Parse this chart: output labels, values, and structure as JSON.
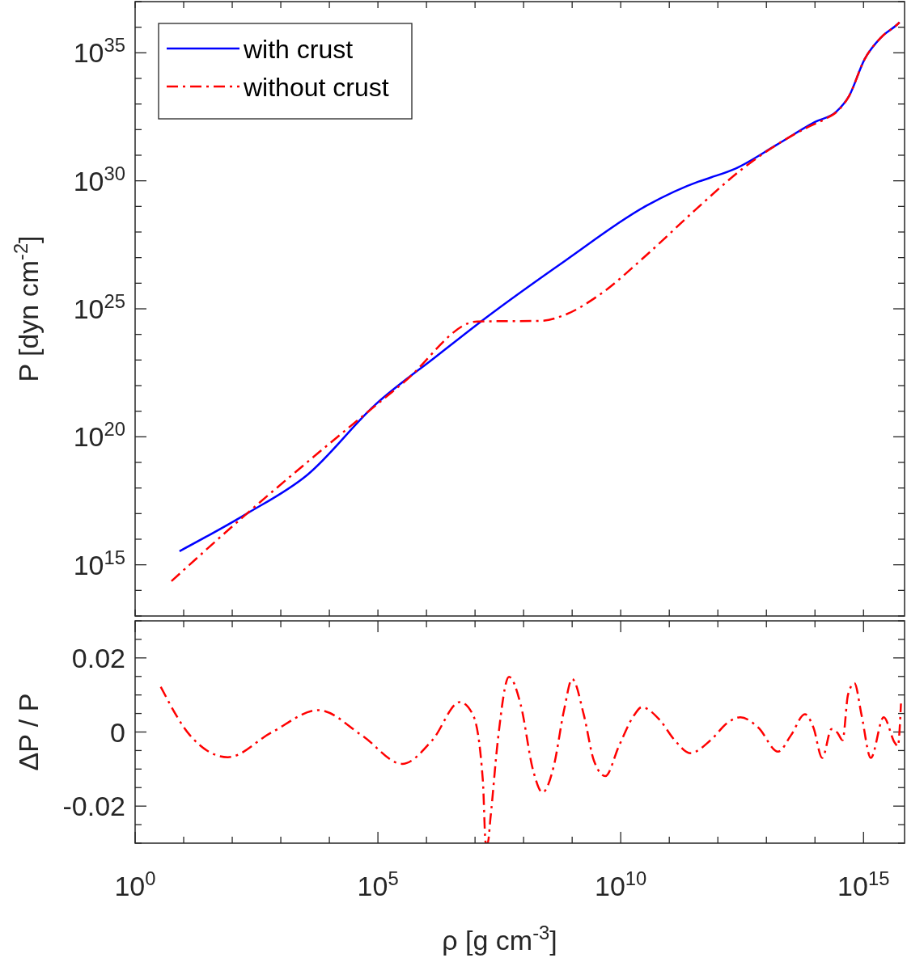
{
  "chart_data": [
    {
      "type": "line",
      "log": "xy",
      "legend": "top left",
      "tick_labels": "y",
      "ylabel": "P [dyn cm$^{-2}$]",
      "xlim": [
        1,
        7000000000000000.0
      ],
      "ylim": [
        10000000000000.0,
        1e+37
      ],
      "xticks": [
        {
          "value": 1,
          "label": null
        },
        {
          "value": 10,
          "label": null
        },
        {
          "value": 100,
          "label": null
        },
        {
          "value": 1000,
          "label": null
        },
        {
          "value": 10000,
          "label": null
        },
        {
          "value": 100000,
          "label": null
        },
        {
          "value": 1000000.0,
          "label": null
        },
        {
          "value": 10000000.0,
          "label": null
        },
        {
          "value": 100000000.0,
          "label": null
        },
        {
          "value": 1000000000.0,
          "label": null
        },
        {
          "value": 10000000000.0,
          "label": null
        },
        {
          "value": 100000000000.0,
          "label": null
        },
        {
          "value": 1000000000000.0,
          "label": null
        },
        {
          "value": 10000000000000.0,
          "label": null
        },
        {
          "value": 100000000000000.0,
          "label": null
        },
        {
          "value": 1000000000000000.0,
          "label": null
        }
      ],
      "yticks": [
        {
          "value": 10000000000000.0,
          "label": null
        },
        {
          "value": 100000000000000.0,
          "label": null
        },
        {
          "value": 1000000000000000.0,
          "label": "10$^{15}$"
        },
        {
          "value": 1e+16,
          "label": null
        },
        {
          "value": 1e+17,
          "label": null
        },
        {
          "value": 1e+18,
          "label": null
        },
        {
          "value": 1e+19,
          "label": null
        },
        {
          "value": 1e+20,
          "label": "10$^{20}$"
        },
        {
          "value": 1e+21,
          "label": null
        },
        {
          "value": 1e+22,
          "label": null
        },
        {
          "value": 1e+23,
          "label": null
        },
        {
          "value": 1e+24,
          "label": null
        },
        {
          "value": 1e+25,
          "label": "10$^{25}$"
        },
        {
          "value": 1e+26,
          "label": null
        },
        {
          "value": 1e+27,
          "label": null
        },
        {
          "value": 1e+28,
          "label": null
        },
        {
          "value": 1e+29,
          "label": null
        },
        {
          "value": 1e+30,
          "label": "10$^{30}$"
        },
        {
          "value": 1e+31,
          "label": null
        },
        {
          "value": 1e+32,
          "label": null
        },
        {
          "value": 1e+33,
          "label": null
        },
        {
          "value": 1e+34,
          "label": null
        },
        {
          "value": 1e+35,
          "label": "10$^{35}$"
        },
        {
          "value": 1e+36,
          "label": null
        },
        {
          "value": 1e+37,
          "label": null
        }
      ],
      "series": [
        {
          "name": "with crust",
          "color": "#0000ff",
          "line_style": "solid",
          "x": [
            8.2,
            200,
            3470,
            91000,
            1600000.0,
            16000000.0,
            740000000.0,
            34000000000.0,
            400000000000.0,
            720000000000.0,
            2300000000000.0,
            16000000000000.0,
            100000000000000.0,
            275000000000000.0,
            500000000000000.0,
            1050000000000000.0,
            2300000000000000.0,
            4900000000000000.0,
            5500000000000000.0
          ],
          "values": [
            3400000000000000.0,
            1e+17,
            3.2e+18,
            1.9e+21,
            1.4e+23,
            4.2e+24,
            7.9e+26,
            1.07e+29,
            9.3e+29,
            1.35e+30,
            3e+30,
            2.5e+31,
            2e+32,
            5e+32,
            2e+33,
            5.6e+34,
            4e+35,
            1.26e+36,
            1.55e+36
          ]
        },
        {
          "name": "without crust",
          "color": "#ff0000",
          "line_style": "dashed",
          "x": [
            5.6,
            200,
            7600,
            350000,
            11000000.0,
            230000000.0,
            740000000.0,
            3400000000.0,
            34000000000.0,
            340000000000.0,
            3400000000000.0,
            16000000000000.0,
            72000000000000.0,
            155000000000000.0,
            275000000000000.0,
            500000000000000.0,
            1050000000000000.0,
            2300000000000000.0,
            4900000000000000.0,
            5500000000000000.0
          ],
          "values": [
            230000000000000.0,
            1e+17,
            3.5e+19,
            1.4e+22,
            3.2e+24,
            3.4e+24,
            6e+24,
            3.2e+25,
            1.26e+27,
            7.2e+28,
            3.2e+30,
            2.5e+31,
            1.26e+32,
            2.5e+32,
            4.8e+32,
            2e+33,
            5.6e+34,
            4e+35,
            1.26e+36,
            1.55e+36
          ]
        }
      ]
    },
    {
      "type": "line",
      "log": "x",
      "ylabel": "ΔP / P",
      "xlabel": "ρ [g cm$^{-3}$]",
      "xlim": [
        1,
        7000000000000000.0
      ],
      "ylim": [
        -0.03,
        0.03
      ],
      "xticks": [
        {
          "value": 1,
          "label": "10$^{0}$"
        },
        {
          "value": 10,
          "label": null
        },
        {
          "value": 100,
          "label": null
        },
        {
          "value": 1000,
          "label": null
        },
        {
          "value": 10000,
          "label": null
        },
        {
          "value": 100000,
          "label": "10$^{5}$"
        },
        {
          "value": 1000000.0,
          "label": null
        },
        {
          "value": 10000000.0,
          "label": null
        },
        {
          "value": 100000000.0,
          "label": null
        },
        {
          "value": 1000000000.0,
          "label": null
        },
        {
          "value": 10000000000.0,
          "label": "10$^{10}$"
        },
        {
          "value": 100000000000.0,
          "label": null
        },
        {
          "value": 1000000000000.0,
          "label": null
        },
        {
          "value": 10000000000000.0,
          "label": null
        },
        {
          "value": 100000000000000.0,
          "label": null
        },
        {
          "value": 1000000000000000.0,
          "label": "10$^{15}$"
        }
      ],
      "yticks": [
        {
          "value": -0.03,
          "label": null
        },
        {
          "value": -0.025,
          "label": null
        },
        -0.02,
        {
          "value": -0.015,
          "label": null
        },
        {
          "value": -0.01,
          "label": null
        },
        {
          "value": -0.005,
          "label": null
        },
        0,
        {
          "value": 0.005,
          "label": null
        },
        {
          "value": 0.01,
          "label": null
        },
        {
          "value": 0.015,
          "label": null
        },
        0.02,
        {
          "value": 0.025,
          "label": null
        },
        {
          "value": 0.03,
          "label": null
        }
      ],
      "series": [
        {
          "color": "#ff0000",
          "line_style": "dashed",
          "x": [
            3.37,
            13.5,
            81,
            631,
            6000,
            46800,
            316000,
            1320000.0,
            4900000.0,
            9100000.0,
            14500000.0,
            16600000.0,
            18200000.0,
            20900000.0,
            29500000.0,
            50000000.0,
            87000000.0,
            158000000.0,
            245000000.0,
            420000000.0,
            680000000.0,
            1000000000.0,
            1740000000.0,
            2800000000.0,
            4800000000.0,
            9300000000.0,
            19000000000.0,
            27000000000.0,
            63000000000.0,
            129000000000.0,
            270000000000.0,
            710000000000.0,
            1620000000000.0,
            2900000000000.0,
            6800000000000.0,
            17400000000000.0,
            32000000000000.0,
            62000000000000.0,
            93000000000000.0,
            141000000000000.0,
            220000000000000.0,
            290000000000000.0,
            370000000000000.0,
            480000000000000.0,
            650000000000000.0,
            910000000000000.0,
            1410000000000000.0,
            2600000000000000.0,
            4400000000000000.0,
            5100000000000000.0,
            5900000000000000.0
          ],
          "values": [
            0.0122,
            -0.0009,
            -0.0068,
            -0.0002,
            0.0059,
            -0.0009,
            -0.0086,
            -0.0022,
            0.0081,
            0.0046,
            -0.0132,
            -0.03,
            -0.03,
            -0.0229,
            -0.0022,
            0.0149,
            0.0074,
            -0.0105,
            -0.0163,
            -0.0091,
            0.0059,
            0.0143,
            0.0046,
            -0.0077,
            -0.0119,
            -0.0036,
            0.0046,
            0.0067,
            0.0033,
            -0.0022,
            -0.0057,
            -0.0022,
            0.0026,
            0.004,
            0.0012,
            -0.0053,
            -0.0009,
            0.0048,
            0.0012,
            -0.007,
            0.0008,
            -0.0002,
            -0.0022,
            0.0101,
            0.0132,
            0.0046,
            -0.007,
            0.004,
            -0.0029,
            -0.0038,
            0.0077
          ]
        }
      ]
    }
  ]
}
